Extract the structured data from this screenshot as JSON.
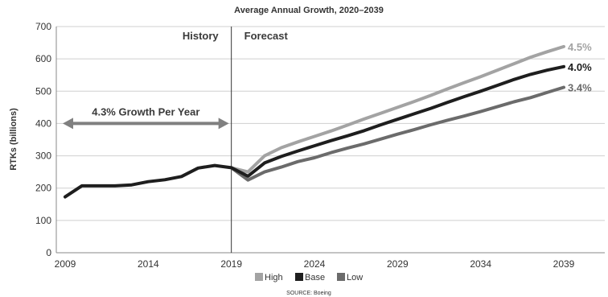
{
  "chart_data": {
    "type": "line",
    "title": "Average Annual Growth, 2020–2039",
    "ylabel": "RTKs (billions)",
    "xlabel": "",
    "ylim": [
      0,
      700
    ],
    "xlim": [
      2009,
      2039
    ],
    "x_ticks": [
      "2009",
      "2014",
      "2019",
      "2024",
      "2029",
      "2034",
      "2039"
    ],
    "y_ticks": [
      "0",
      "100",
      "200",
      "300",
      "400",
      "500",
      "600",
      "700"
    ],
    "grid": true,
    "regions": {
      "history_label": "History",
      "forecast_label": "Forecast",
      "divider_x": 2019
    },
    "annotation": {
      "text": "4.3% Growth Per Year",
      "x_from": 2009,
      "x_to": 2019,
      "y": 400
    },
    "legend_placement": "bottom",
    "history": {
      "color": "#1e1e1e",
      "x": [
        2009,
        2010,
        2011,
        2012,
        2013,
        2014,
        2015,
        2016,
        2017,
        2018,
        2019
      ],
      "y": [
        173,
        207,
        207,
        207,
        210,
        220,
        226,
        236,
        262,
        270,
        263
      ]
    },
    "series": [
      {
        "name": "High",
        "end_label": "4.5%",
        "color": "#a3a3a3",
        "x": [
          2019,
          2020,
          2021,
          2022,
          2023,
          2024,
          2025,
          2026,
          2027,
          2028,
          2029,
          2030,
          2031,
          2032,
          2033,
          2034,
          2035,
          2036,
          2037,
          2038,
          2039
        ],
        "y": [
          263,
          250,
          300,
          325,
          343,
          360,
          377,
          395,
          414,
          432,
          450,
          468,
          487,
          507,
          526,
          545,
          565,
          585,
          605,
          622,
          638
        ]
      },
      {
        "name": "Base",
        "end_label": "4.0%",
        "color": "#1e1e1e",
        "x": [
          2019,
          2020,
          2021,
          2022,
          2023,
          2024,
          2025,
          2026,
          2027,
          2028,
          2029,
          2030,
          2031,
          2032,
          2033,
          2034,
          2035,
          2036,
          2037,
          2038,
          2039
        ],
        "y": [
          263,
          237,
          278,
          298,
          315,
          331,
          347,
          362,
          378,
          396,
          413,
          430,
          447,
          465,
          483,
          500,
          518,
          536,
          552,
          565,
          576
        ]
      },
      {
        "name": "Low",
        "end_label": "3.4%",
        "color": "#6b6b6b",
        "x": [
          2019,
          2020,
          2021,
          2022,
          2023,
          2024,
          2025,
          2026,
          2027,
          2028,
          2029,
          2030,
          2031,
          2032,
          2033,
          2034,
          2035,
          2036,
          2037,
          2038,
          2039
        ],
        "y": [
          263,
          225,
          250,
          265,
          282,
          294,
          310,
          324,
          337,
          352,
          367,
          381,
          396,
          410,
          423,
          437,
          452,
          467,
          480,
          496,
          512
        ]
      }
    ],
    "source": "SOURCE: Boeing"
  }
}
